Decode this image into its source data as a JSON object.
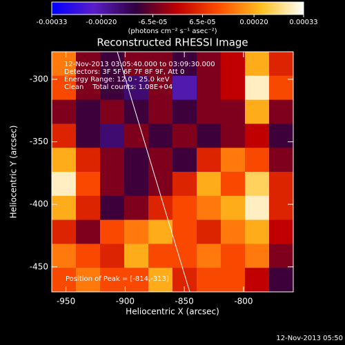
{
  "chart_data": {
    "type": "heatmap",
    "title": "Reconstructed RHESSI Image",
    "x_label": "Heliocentric X (arcsec)",
    "y_label": "Heliocentric Y (arcsec)",
    "colorbar_label": "(photons cm⁻² s⁻¹ asec⁻²)",
    "colorbar_lim": [
      -0.00033,
      0.00033
    ],
    "colorbar_ticks": [
      -0.00033,
      {
        "value": -0.0002,
        "label": "-0.00020"
      },
      {
        "value": -6.5e-05,
        "label": "-6.5e-05"
      },
      {
        "value": 6.5e-05,
        "label": "6.5e-05"
      },
      {
        "value": 0.0002,
        "label": "0.00020"
      },
      0.00033
    ],
    "colormap": [
      "#0000ff",
      "#5a1ec8",
      "#300040",
      "#c00000",
      "#ff5000",
      "#ffc020",
      "#ffffff"
    ],
    "xlim": [
      -962,
      -758
    ],
    "ylim": [
      -470,
      -278
    ],
    "xticks": [
      -950,
      -900,
      -850,
      -800
    ],
    "yticks": [
      -300,
      -350,
      -400,
      -450
    ],
    "annotations": [
      "12-Nov-2013 03:05:40.000 to 03:09:30.000",
      "Detectors: 3F 5F 6F 7F 8F 9F, Att 0",
      "Energy Range: 12.0 - 25.0 keV",
      "Clean    Total counts: 1.08E+04"
    ],
    "peak_label": "Position of Peak = [-814,-313]",
    "footer": "12-Nov-2013 05:50",
    "values": [
      [
        0.00015,
        -5e-05,
        -0.0001,
        -5e-05,
        -5e-05,
        -0.0001,
        -5e-05,
        0,
        0.0002,
        5e-05
      ],
      [
        0.0001,
        -5e-05,
        -0.0001,
        -0.00015,
        -5e-05,
        -0.0002,
        -5e-05,
        0,
        0.0003,
        0.0001
      ],
      [
        -5e-05,
        -0.0001,
        -5e-05,
        -0.0001,
        -5e-05,
        -0.0001,
        -5e-05,
        -5e-05,
        0.0002,
        -5e-05
      ],
      [
        5e-05,
        -0.0001,
        -0.00015,
        -5e-05,
        -0.0001,
        -5e-05,
        -0.0001,
        -5e-05,
        0,
        -0.0001
      ],
      [
        0.0002,
        5e-05,
        -5e-05,
        -0.0001,
        -5e-05,
        -0.0001,
        5e-05,
        0.00015,
        0.0001,
        -5e-05
      ],
      [
        0.0003,
        0.0001,
        -5e-05,
        -0.0001,
        -5e-05,
        5e-05,
        0.0002,
        0.0001,
        0.00025,
        5e-05
      ],
      [
        0.0002,
        5e-05,
        -0.0001,
        -5e-05,
        5e-05,
        0.0001,
        0.00015,
        0.0002,
        0.0003,
        5e-05
      ],
      [
        5e-05,
        -5e-05,
        0.0001,
        0.00015,
        0.0002,
        0.0001,
        5e-05,
        0.00015,
        0.0002,
        0
      ],
      [
        0.00015,
        0.0001,
        5e-05,
        0.0002,
        0.0001,
        0.0001,
        0.00015,
        0.0001,
        0.00015,
        -5e-05
      ],
      [
        0.0001,
        0.00015,
        0.0001,
        0.0001,
        0.0002,
        5e-05,
        0.0001,
        0.0001,
        0,
        -0.0001
      ]
    ]
  }
}
